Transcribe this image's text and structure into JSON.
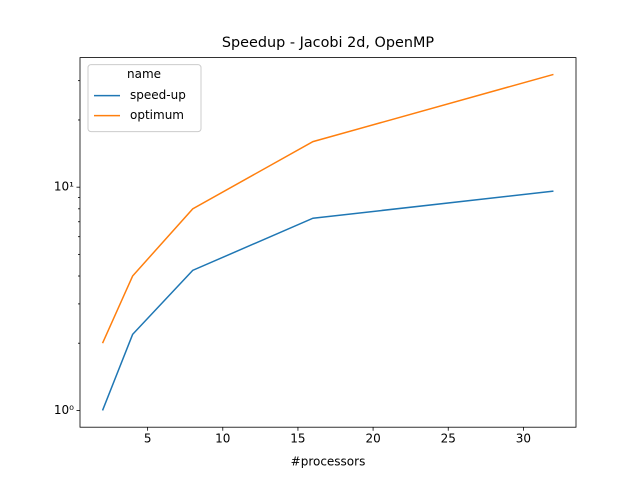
{
  "chart_data": {
    "type": "line",
    "title": "Speedup - Jacobi 2d, OpenMP",
    "x_label": "#processors",
    "x": [
      2,
      4,
      8,
      16,
      32
    ],
    "series": [
      {
        "name": "speed-up",
        "color": "#1f77b4",
        "values": [
          1.0,
          2.19,
          4.24,
          7.26,
          9.6
        ]
      },
      {
        "name": "optimum",
        "color": "#ff7f0e",
        "values": [
          2,
          4,
          8,
          16,
          32
        ]
      }
    ],
    "xlim": [
      0.5,
      33.5
    ],
    "xticks": [
      5,
      10,
      15,
      20,
      25,
      30
    ],
    "ylim": [
      0.841,
      38.06
    ],
    "y_scale": "log",
    "yticks": [
      {
        "value": 1,
        "label": "10⁰"
      },
      {
        "value": 10,
        "label": "10¹"
      }
    ],
    "yminorticks": [
      2,
      3,
      4,
      5,
      6,
      7,
      8,
      9,
      20,
      30
    ],
    "grid": false,
    "legend_title": "name",
    "legend_position": "upper left"
  }
}
